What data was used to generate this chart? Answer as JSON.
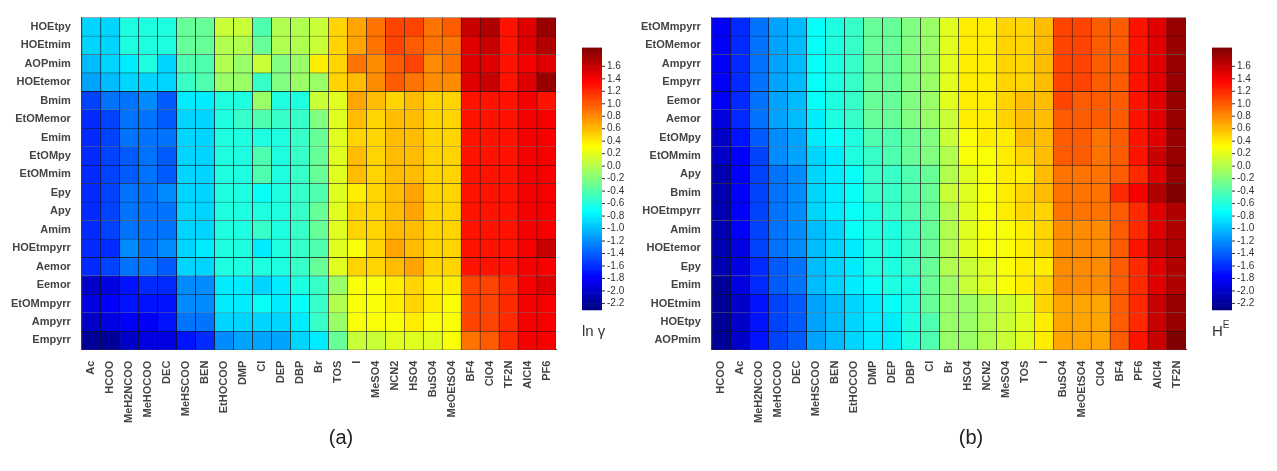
{
  "chart_data": [
    {
      "type": "heatmap",
      "clabel": "ln γ",
      "annotations": [
        "(a)"
      ],
      "categories": [
        "Ac",
        "HCOO",
        "MeH2NCOO",
        "MeHOCOO",
        "DEC",
        "MeHSCOO",
        "BEN",
        "EtHOCOO",
        "DMP",
        "Cl",
        "DEP",
        "DBP",
        "Br",
        "TOS",
        "I",
        "MeSO4",
        "NCN2",
        "HSO4",
        "BuSO4",
        "MeOEtSO4",
        "BF4",
        "ClO4",
        "TF2N",
        "AlCl4",
        "PF6"
      ],
      "y_categories": [
        "HOEtpy",
        "HOEtmim",
        "AOPmim",
        "HOEtemor",
        "Bmim",
        "EtOMemor",
        "Emim",
        "EtOMpy",
        "EtOMmim",
        "Epy",
        "Apy",
        "Amim",
        "HOEtmpyrr",
        "Aemor",
        "Eemor",
        "EtOMmpyrr",
        "Ampyrr",
        "Empyrr"
      ],
      "clim": [
        -2.3,
        1.9
      ],
      "cticks": [
        {
          "value": -2.2,
          "label": "-2.2"
        },
        {
          "value": -2,
          "label": "-2.0"
        },
        {
          "value": -1.8,
          "label": "-1.8"
        },
        {
          "value": -1.6,
          "label": "-1.6"
        },
        {
          "value": -1.4,
          "label": "-1.4"
        },
        {
          "value": -1.2,
          "label": "-1.2"
        },
        {
          "value": -1,
          "label": "-1.0"
        },
        {
          "value": -0.8,
          "label": "-0.8"
        },
        {
          "value": -0.6,
          "label": "-0.6"
        },
        {
          "value": -0.4,
          "label": "-0.4"
        },
        {
          "value": -0.2,
          "label": "-0.2"
        },
        {
          "value": 0,
          "label": "0.0"
        },
        {
          "value": 0.2,
          "label": "0.2"
        },
        {
          "value": 0.4,
          "label": "0.4"
        },
        {
          "value": 0.6,
          "label": "0.6"
        },
        {
          "value": 0.8,
          "label": "0.8"
        },
        {
          "value": 1,
          "label": "1.0"
        },
        {
          "value": 1.2,
          "label": "1.2"
        },
        {
          "value": 1.4,
          "label": "1.4"
        },
        {
          "value": 1.6,
          "label": "1.6"
        }
      ],
      "cells": [
        [
          -0.9,
          -0.9,
          -0.6,
          -0.6,
          -0.6,
          -0.3,
          -0.3,
          0.1,
          0.1,
          -0.4,
          0.0,
          0.0,
          0.1,
          0.5,
          0.7,
          0.9,
          1.1,
          1.1,
          0.9,
          1.0,
          1.6,
          1.7,
          1.3,
          1.5,
          1.8
        ],
        [
          -0.9,
          -0.9,
          -0.6,
          -0.6,
          -0.6,
          -0.3,
          -0.3,
          0.0,
          0.0,
          -0.3,
          0.0,
          0.0,
          0.1,
          0.5,
          0.7,
          0.9,
          1.1,
          1.0,
          0.9,
          0.9,
          1.5,
          1.6,
          1.3,
          1.5,
          1.7
        ],
        [
          -1.0,
          -0.9,
          -0.8,
          -0.6,
          -0.9,
          -0.4,
          -0.4,
          0.0,
          -0.1,
          0.1,
          -0.2,
          -0.1,
          0.4,
          0.5,
          0.9,
          0.8,
          1.0,
          1.1,
          0.8,
          0.9,
          1.5,
          1.5,
          1.3,
          1.4,
          1.5
        ],
        [
          -1.1,
          -1.0,
          -0.9,
          -0.9,
          -0.9,
          -0.5,
          -0.4,
          -0.1,
          -0.1,
          -0.5,
          -0.2,
          -0.1,
          -0.1,
          0.5,
          0.6,
          0.8,
          1.0,
          0.9,
          0.8,
          0.8,
          1.5,
          1.6,
          1.3,
          1.5,
          1.8
        ],
        [
          -1.5,
          -1.3,
          -1.3,
          -1.2,
          -1.4,
          -0.8,
          -0.8,
          -0.6,
          -0.6,
          -0.1,
          -0.6,
          -0.6,
          0.1,
          0.2,
          0.7,
          0.6,
          0.5,
          0.6,
          0.5,
          0.5,
          1.3,
          1.3,
          1.3,
          1.4,
          1.3
        ],
        [
          -1.6,
          -1.5,
          -1.3,
          -1.3,
          -1.4,
          -0.9,
          -0.9,
          -0.6,
          -0.5,
          -0.4,
          -0.5,
          -0.5,
          -0.2,
          0.2,
          0.6,
          0.5,
          0.6,
          0.6,
          0.5,
          0.5,
          1.3,
          1.3,
          1.3,
          1.4,
          1.4
        ],
        [
          -1.6,
          -1.5,
          -1.3,
          -1.3,
          -1.3,
          -0.9,
          -0.9,
          -0.6,
          -0.6,
          -0.6,
          -0.6,
          -0.5,
          -0.3,
          0.2,
          0.5,
          0.5,
          0.6,
          0.6,
          0.5,
          0.5,
          1.3,
          1.3,
          1.3,
          1.4,
          1.4
        ],
        [
          -1.6,
          -1.5,
          -1.4,
          -1.3,
          -1.4,
          -0.9,
          -0.9,
          -0.6,
          -0.6,
          -0.4,
          -0.6,
          -0.5,
          -0.3,
          0.2,
          0.6,
          0.5,
          0.6,
          0.6,
          0.5,
          0.5,
          1.3,
          1.3,
          1.3,
          1.4,
          1.4
        ],
        [
          -1.6,
          -1.5,
          -1.4,
          -1.3,
          -1.4,
          -0.9,
          -0.9,
          -0.6,
          -0.6,
          -0.4,
          -0.6,
          -0.5,
          -0.3,
          0.2,
          0.6,
          0.5,
          0.6,
          0.6,
          0.5,
          0.5,
          1.3,
          1.3,
          1.3,
          1.4,
          1.4
        ],
        [
          -1.6,
          -1.5,
          -1.3,
          -1.3,
          -1.2,
          -0.9,
          -0.9,
          -0.6,
          -0.6,
          -0.7,
          -0.6,
          -0.5,
          -0.4,
          0.2,
          0.4,
          0.5,
          0.6,
          0.7,
          0.5,
          0.5,
          1.3,
          1.3,
          1.3,
          1.4,
          1.4
        ],
        [
          -1.6,
          -1.5,
          -1.3,
          -1.3,
          -1.3,
          -0.9,
          -0.9,
          -0.6,
          -0.6,
          -0.6,
          -0.6,
          -0.5,
          -0.3,
          0.2,
          0.5,
          0.5,
          0.6,
          0.7,
          0.5,
          0.5,
          1.3,
          1.3,
          1.3,
          1.4,
          1.4
        ],
        [
          -1.6,
          -1.5,
          -1.3,
          -1.3,
          -1.3,
          -0.9,
          -0.9,
          -0.6,
          -0.6,
          -0.5,
          -0.6,
          -0.5,
          -0.3,
          0.2,
          0.5,
          0.5,
          0.6,
          0.6,
          0.5,
          0.5,
          1.3,
          1.3,
          1.3,
          1.4,
          1.4
        ],
        [
          -1.6,
          -1.6,
          -1.2,
          -1.3,
          -1.2,
          -0.9,
          -0.8,
          -0.6,
          -0.6,
          -0.8,
          -0.6,
          -0.5,
          -0.4,
          0.2,
          0.3,
          0.5,
          0.7,
          0.6,
          0.5,
          0.5,
          1.3,
          1.3,
          1.3,
          1.4,
          1.6
        ],
        [
          -1.6,
          -1.5,
          -1.3,
          -1.3,
          -1.4,
          -0.9,
          -0.9,
          -0.6,
          -0.6,
          -0.6,
          -0.6,
          -0.5,
          -0.3,
          0.2,
          0.5,
          0.5,
          0.6,
          0.7,
          0.5,
          0.5,
          1.3,
          1.3,
          1.3,
          1.4,
          1.4
        ],
        [
          -2.0,
          -1.9,
          -1.7,
          -1.6,
          -1.6,
          -1.2,
          -1.2,
          -0.8,
          -0.8,
          -0.9,
          -0.8,
          -0.6,
          -0.5,
          -0.1,
          0.3,
          0.3,
          0.4,
          0.5,
          0.4,
          0.4,
          1.1,
          1.1,
          1.2,
          1.4,
          1.5
        ],
        [
          -1.9,
          -1.8,
          -1.7,
          -1.7,
          -1.7,
          -1.2,
          -1.2,
          -0.8,
          -0.8,
          -0.7,
          -0.8,
          -0.7,
          -0.5,
          0.0,
          0.3,
          0.3,
          0.4,
          0.5,
          0.4,
          0.3,
          1.1,
          1.1,
          1.2,
          1.4,
          1.4
        ],
        [
          -2.0,
          -1.9,
          -1.8,
          -1.8,
          -1.7,
          -1.3,
          -1.3,
          -0.9,
          -0.9,
          -0.9,
          -0.9,
          -0.8,
          -0.5,
          -0.1,
          0.3,
          0.3,
          0.3,
          0.4,
          0.3,
          0.3,
          1.1,
          1.1,
          1.2,
          1.4,
          1.4
        ],
        [
          -2.2,
          -2.2,
          -2.0,
          -1.9,
          -1.9,
          -1.7,
          -1.6,
          -1.2,
          -1.1,
          -1.1,
          -1.1,
          -0.9,
          -0.8,
          -0.3,
          0.1,
          0.1,
          0.2,
          0.2,
          0.2,
          0.3,
          0.9,
          1.0,
          1.2,
          1.4,
          1.4
        ]
      ]
    },
    {
      "type": "heatmap",
      "clabel": "H$^{E}$",
      "annotations": [
        "(b)"
      ],
      "categories": [
        "HCOO",
        "Ac",
        "MeH2NCOO",
        "MeHOCOO",
        "DEC",
        "MeHSCOO",
        "BEN",
        "EtHOCOO",
        "DMP",
        "DEP",
        "DBP",
        "Cl",
        "Br",
        "HSO4",
        "NCN2",
        "MeSO4",
        "TOS",
        "I",
        "BuSO4",
        "MeOEtSO4",
        "ClO4",
        "BF4",
        "PF6",
        "AlCl4",
        "TF2N"
      ],
      "y_categories": [
        "EtOMmpyrr",
        "EtOMemor",
        "Ampyrr",
        "Empyrr",
        "Eemor",
        "Aemor",
        "EtOMpy",
        "EtOMmim",
        "Apy",
        "Bmim",
        "HOEtmpyrr",
        "Amim",
        "HOEtemor",
        "Epy",
        "Emim",
        "HOEtmim",
        "HOEtpy",
        "AOPmim"
      ],
      "clim": [
        -2.3,
        1.9
      ],
      "cticks": [
        {
          "value": -2.2,
          "label": "-2.2"
        },
        {
          "value": -2,
          "label": "-2.0"
        },
        {
          "value": -1.8,
          "label": "-1.8"
        },
        {
          "value": -1.6,
          "label": "-1.6"
        },
        {
          "value": -1.4,
          "label": "-1.4"
        },
        {
          "value": -1.2,
          "label": "-1.2"
        },
        {
          "value": -1,
          "label": "-1.0"
        },
        {
          "value": -0.8,
          "label": "-0.8"
        },
        {
          "value": -0.6,
          "label": "-0.6"
        },
        {
          "value": -0.4,
          "label": "-0.4"
        },
        {
          "value": -0.2,
          "label": "-0.2"
        },
        {
          "value": 0,
          "label": "0.0"
        },
        {
          "value": 0.2,
          "label": "0.2"
        },
        {
          "value": 0.4,
          "label": "0.4"
        },
        {
          "value": 0.6,
          "label": "0.6"
        },
        {
          "value": 0.8,
          "label": "0.8"
        },
        {
          "value": 1,
          "label": "1.0"
        },
        {
          "value": 1.2,
          "label": "1.2"
        },
        {
          "value": 1.4,
          "label": "1.4"
        },
        {
          "value": 1.6,
          "label": "1.6"
        }
      ],
      "cells": [
        [
          -1.8,
          -1.6,
          -1.3,
          -1.1,
          -1.0,
          -0.7,
          -0.6,
          -0.5,
          -0.3,
          -0.3,
          -0.2,
          -0.1,
          0.2,
          0.4,
          0.4,
          0.5,
          0.5,
          0.6,
          1.1,
          1.1,
          1.0,
          1.0,
          1.3,
          1.5,
          1.8
        ],
        [
          -1.8,
          -1.6,
          -1.3,
          -1.1,
          -1.0,
          -0.7,
          -0.6,
          -0.5,
          -0.3,
          -0.3,
          -0.2,
          -0.1,
          0.2,
          0.4,
          0.4,
          0.5,
          0.5,
          0.6,
          1.1,
          1.1,
          1.0,
          1.0,
          1.3,
          1.5,
          1.8
        ],
        [
          -1.8,
          -1.6,
          -1.3,
          -1.1,
          -1.0,
          -0.7,
          -0.6,
          -0.5,
          -0.3,
          -0.3,
          -0.2,
          -0.1,
          0.2,
          0.4,
          0.4,
          0.5,
          0.5,
          0.6,
          1.1,
          1.1,
          1.0,
          1.0,
          1.3,
          1.5,
          1.8
        ],
        [
          -1.8,
          -1.6,
          -1.3,
          -1.1,
          -1.0,
          -0.7,
          -0.6,
          -0.5,
          -0.3,
          -0.3,
          -0.2,
          -0.1,
          0.2,
          0.4,
          0.4,
          0.5,
          0.5,
          0.6,
          1.1,
          1.1,
          1.0,
          1.0,
          1.3,
          1.5,
          1.8
        ],
        [
          -1.8,
          -1.6,
          -1.3,
          -1.1,
          -1.0,
          -0.7,
          -0.6,
          -0.5,
          -0.3,
          -0.3,
          -0.2,
          -0.1,
          0.2,
          0.4,
          0.4,
          0.5,
          0.6,
          0.6,
          1.1,
          1.0,
          1.0,
          1.0,
          1.3,
          1.5,
          1.8
        ],
        [
          -1.9,
          -1.6,
          -1.3,
          -1.1,
          -1.0,
          -0.8,
          -0.6,
          -0.5,
          -0.3,
          -0.3,
          -0.2,
          -0.1,
          0.1,
          0.4,
          0.4,
          0.5,
          0.6,
          0.6,
          1.0,
          1.0,
          1.0,
          1.0,
          1.3,
          1.5,
          1.8
        ],
        [
          -2.0,
          -1.7,
          -1.4,
          -1.2,
          -1.1,
          -0.8,
          -0.7,
          -0.6,
          -0.4,
          -0.4,
          -0.3,
          -0.2,
          0.1,
          0.3,
          0.4,
          0.4,
          0.6,
          0.6,
          1.0,
          1.0,
          0.9,
          1.0,
          1.3,
          1.5,
          1.8
        ],
        [
          -2.0,
          -1.8,
          -1.5,
          -1.2,
          -1.1,
          -0.9,
          -0.8,
          -0.6,
          -0.5,
          -0.4,
          -0.3,
          -0.2,
          0.0,
          0.3,
          0.3,
          0.4,
          0.5,
          0.6,
          1.0,
          1.0,
          0.9,
          1.0,
          1.3,
          1.6,
          1.8
        ],
        [
          -2.1,
          -1.8,
          -1.5,
          -1.3,
          -1.2,
          -0.9,
          -0.8,
          -0.7,
          -0.5,
          -0.5,
          -0.4,
          -0.3,
          0.0,
          0.2,
          0.3,
          0.4,
          0.4,
          0.6,
          0.9,
          0.9,
          0.9,
          1.0,
          1.2,
          1.5,
          1.8
        ],
        [
          -2.1,
          -1.8,
          -1.5,
          -1.3,
          -1.2,
          -0.9,
          -0.8,
          -0.7,
          -0.5,
          -0.5,
          -0.4,
          -0.3,
          0.1,
          0.2,
          0.3,
          0.4,
          0.5,
          0.6,
          0.9,
          0.9,
          0.9,
          1.2,
          1.4,
          1.7,
          1.9
        ],
        [
          -2.1,
          -1.8,
          -1.5,
          -1.3,
          -1.2,
          -0.9,
          -0.8,
          -0.7,
          -0.6,
          -0.5,
          -0.4,
          -0.3,
          0.0,
          0.2,
          0.3,
          0.4,
          0.5,
          0.5,
          0.9,
          0.9,
          0.9,
          1.0,
          1.2,
          1.5,
          1.7
        ],
        [
          -2.1,
          -1.8,
          -1.5,
          -1.3,
          -1.2,
          -1.0,
          -0.9,
          -0.7,
          -0.6,
          -0.6,
          -0.5,
          -0.3,
          0.0,
          0.2,
          0.3,
          0.3,
          0.4,
          0.5,
          0.8,
          0.8,
          0.8,
          1.0,
          1.2,
          1.5,
          1.7
        ],
        [
          -2.1,
          -1.9,
          -1.5,
          -1.3,
          -1.2,
          -1.0,
          -0.9,
          -0.8,
          -0.6,
          -0.6,
          -0.5,
          -0.3,
          0.0,
          0.2,
          0.3,
          0.3,
          0.4,
          0.5,
          0.8,
          0.8,
          0.8,
          1.0,
          1.3,
          1.6,
          1.7
        ],
        [
          -2.1,
          -1.9,
          -1.6,
          -1.4,
          -1.3,
          -1.0,
          -0.9,
          -0.8,
          -0.6,
          -0.6,
          -0.5,
          -0.3,
          0.0,
          0.1,
          0.2,
          0.3,
          0.4,
          0.4,
          0.8,
          0.8,
          0.8,
          1.0,
          1.2,
          1.5,
          1.7
        ],
        [
          -2.2,
          -1.9,
          -1.6,
          -1.4,
          -1.3,
          -1.0,
          -0.9,
          -0.8,
          -0.7,
          -0.6,
          -0.6,
          -0.3,
          -0.1,
          0.1,
          0.2,
          0.3,
          0.4,
          0.5,
          0.8,
          0.8,
          0.8,
          1.0,
          1.2,
          1.5,
          1.7
        ],
        [
          -2.2,
          -2.0,
          -1.7,
          -1.5,
          -1.4,
          -1.1,
          -1.0,
          -0.9,
          -0.8,
          -0.7,
          -0.6,
          -0.3,
          -0.1,
          -0.1,
          0.0,
          0.1,
          0.2,
          0.5,
          0.7,
          0.7,
          0.7,
          1.0,
          1.2,
          1.6,
          1.8
        ],
        [
          -2.2,
          -2.0,
          -1.7,
          -1.5,
          -1.4,
          -1.1,
          -1.0,
          -0.9,
          -0.8,
          -0.8,
          -0.6,
          -0.4,
          -0.1,
          -0.1,
          0.0,
          0.1,
          0.2,
          0.4,
          0.7,
          0.7,
          0.7,
          1.0,
          1.2,
          1.6,
          1.8
        ],
        [
          -2.2,
          -2.0,
          -1.7,
          -1.5,
          -1.4,
          -1.1,
          -1.0,
          -0.9,
          -0.8,
          -0.8,
          -0.6,
          -0.4,
          -0.1,
          -0.1,
          0.0,
          0.1,
          0.2,
          0.4,
          0.7,
          0.7,
          0.7,
          1.0,
          1.3,
          1.6,
          1.9
        ]
      ]
    }
  ]
}
